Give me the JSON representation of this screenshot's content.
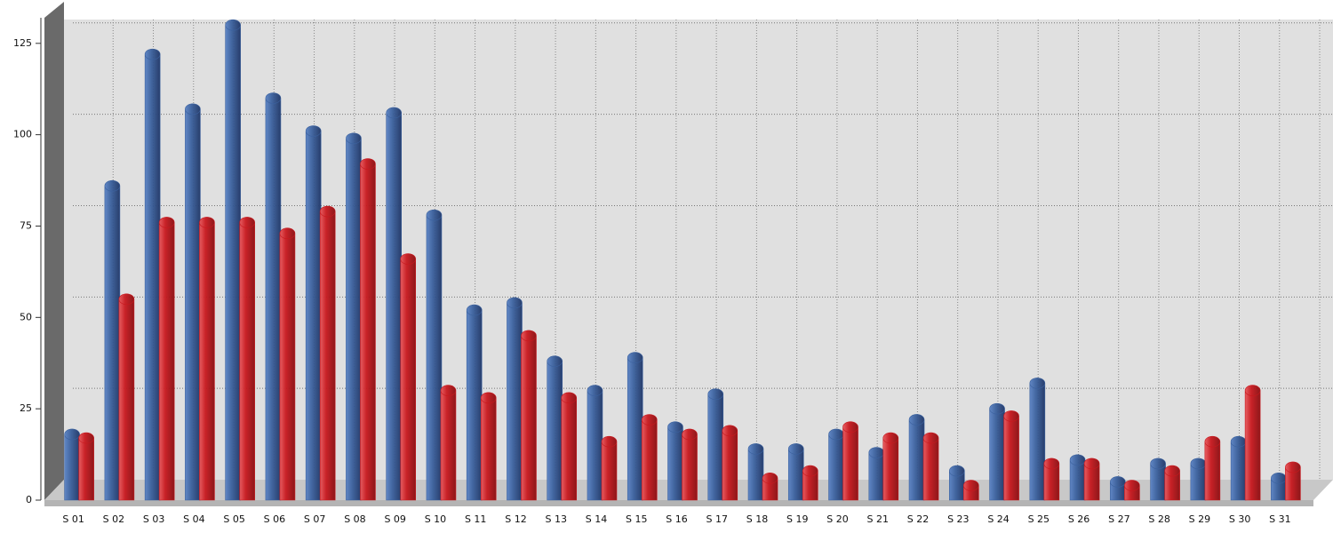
{
  "chart_data": {
    "type": "bar",
    "categories": [
      "S 01",
      "S 02",
      "S 03",
      "S 04",
      "S 05",
      "S 06",
      "S 07",
      "S 08",
      "S 09",
      "S 10",
      "S 11",
      "S 12",
      "S 13",
      "S 14",
      "S 15",
      "S 16",
      "S 17",
      "S 18",
      "S 19",
      "S 20",
      "S 21",
      "S 22",
      "S 23",
      "S 24",
      "S 25",
      "S 26",
      "S 27",
      "S 28",
      "S 29",
      "S 30",
      "S 31"
    ],
    "series": [
      {
        "color": "#3b619e",
        "values": [
          18,
          86,
          122,
          107,
          130,
          110,
          101,
          99,
          106,
          78,
          52,
          54,
          38,
          30,
          39,
          20,
          29,
          14,
          14,
          18,
          13,
          22,
          8,
          25,
          32,
          11,
          5,
          10,
          10,
          16,
          6
        ]
      },
      {
        "color": "#c8181e",
        "values": [
          17,
          55,
          76,
          76,
          76,
          73,
          79,
          92,
          66,
          30,
          28,
          45,
          28,
          16,
          22,
          18,
          19,
          6,
          8,
          20,
          17,
          17,
          4,
          23,
          10,
          10,
          4,
          8,
          16,
          30,
          9
        ]
      }
    ],
    "ylim": [
      0,
      132
    ],
    "yticks": [
      0,
      25,
      50,
      75,
      100,
      125
    ],
    "grid": true
  }
}
